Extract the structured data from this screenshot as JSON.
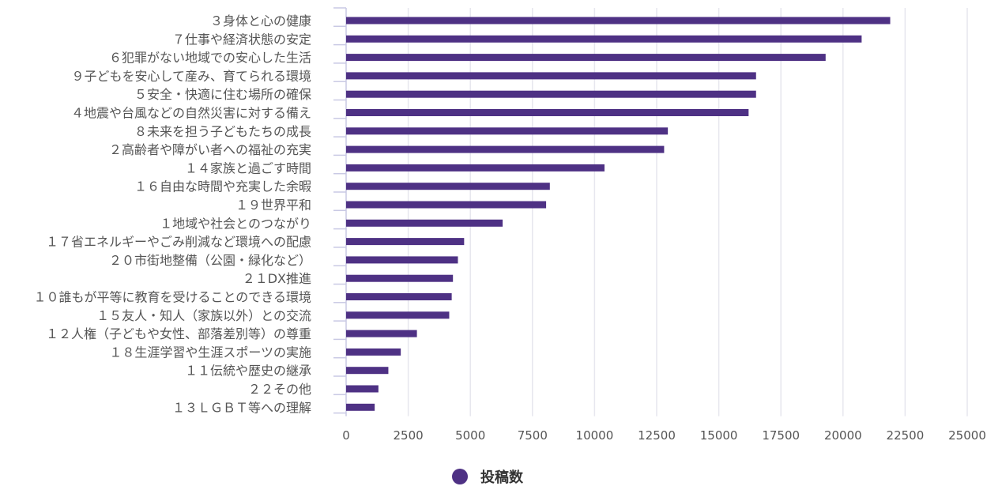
{
  "colors": {
    "bar": "#4e3184",
    "grid": "#e6e6ee",
    "axis": "#c9c9e4"
  },
  "chart_data": {
    "type": "bar",
    "orientation": "horizontal",
    "categories": [
      "３身体と心の健康",
      "７仕事や経済状態の安定",
      "６犯罪がない地域での安心した生活",
      "９子どもを安心して産み、育てられる環境",
      "５安全・快適に住む場所の確保",
      "４地震や台風などの自然災害に対する備え",
      "８未来を担う子どもたちの成長",
      "２高齢者や障がい者への福祉の充実",
      "１４家族と過ごす時間",
      "１６自由な時間や充実した余暇",
      "１９世界平和",
      "１地域や社会とのつながり",
      "１７省エネルギーやごみ削減など環境への配慮",
      "２０市街地整備（公園・緑化など）",
      "２１DX推進",
      "１０誰もが平等に教育を受けることのできる環境",
      "１５友人・知人（家族以外）との交流",
      "１２人権（子どもや女性、部落差別等）の尊重",
      "１８生涯学習や生涯スポーツの実施",
      "１１伝統や歴史の継承",
      "２２その他",
      "１３ＬＧＢＴ等への理解"
    ],
    "series": [
      {
        "name": "投稿数",
        "values": [
          21900,
          20750,
          19300,
          16500,
          16500,
          16200,
          12950,
          12800,
          10400,
          8200,
          8050,
          6300,
          4750,
          4500,
          4300,
          4250,
          4150,
          2850,
          2200,
          1700,
          1300,
          1150
        ]
      }
    ],
    "xlim": [
      0,
      25000
    ],
    "xticks": [
      "0",
      "2500",
      "5000",
      "7500",
      "10000",
      "12500",
      "15000",
      "17500",
      "20000",
      "22500",
      "25000"
    ],
    "grid": true,
    "legend": "bottom"
  }
}
